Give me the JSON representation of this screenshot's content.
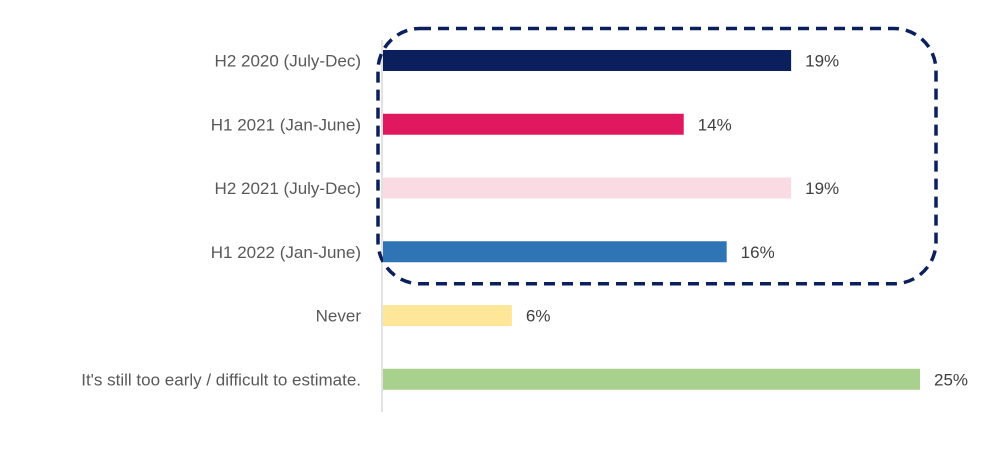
{
  "chart_data": {
    "type": "bar",
    "orientation": "horizontal",
    "categories": [
      "H2 2020 (July-Dec)",
      "H1 2021 (Jan-June)",
      "H2 2021 (July-Dec)",
      "H1 2022 (Jan-June)",
      "Never",
      "It's still too early / difficult to estimate."
    ],
    "values": [
      19,
      14,
      19,
      16,
      6,
      25
    ],
    "value_labels": [
      "19%",
      "14%",
      "19%",
      "16%",
      "6%",
      "25%"
    ],
    "colors": [
      "#0b1f5c",
      "#e0185f",
      "#fadbe3",
      "#2f75b5",
      "#ffe699",
      "#a9d18e"
    ],
    "xlim": [
      0,
      25
    ],
    "grid": false,
    "legend": "none",
    "annotation": {
      "shape": "dashed-rounded-rectangle",
      "color": "#0b1f5c",
      "encloses": [
        "H2 2020 (July-Dec)",
        "H1 2021 (Jan-June)",
        "H2 2021 (July-Dec)",
        "H1 2022 (Jan-June)"
      ]
    }
  }
}
